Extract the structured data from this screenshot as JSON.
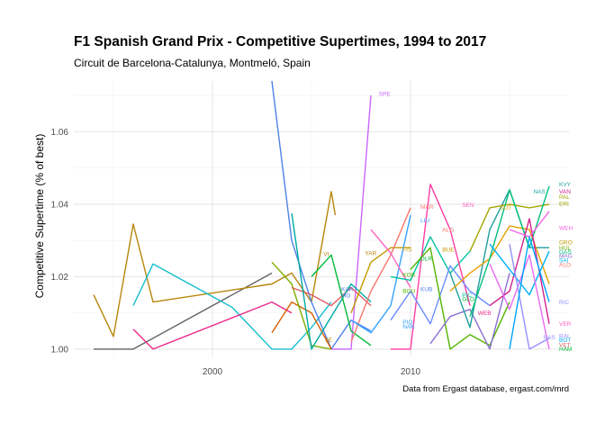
{
  "chart_data": {
    "type": "line",
    "title": "F1 Spanish Grand Prix - Competitive Supertimes, 1994 to 2017",
    "subtitle": "Circuit de Barcelona-Catalunya, Montmeló, Spain",
    "caption": "Data from Ergast database, ergast.com/mrd",
    "xlabel": "",
    "ylabel": "Competitive Supertime (% of best)",
    "x_ticks": [
      2000,
      2010
    ],
    "y_ticks": [
      1.0,
      1.02,
      1.04,
      1.06
    ],
    "y_tick_labels": [
      "1.00",
      "1.02",
      "1.04",
      "1.06"
    ],
    "xlim": [
      1993,
      2018
    ],
    "ylim": [
      0.998,
      1.074
    ],
    "grid": true,
    "legend": "none",
    "series": [
      {
        "color": "#636363",
        "points": [
          [
            1994,
            1.0
          ],
          [
            1996,
            1.0
          ],
          [
            2003,
            1.021
          ]
        ]
      },
      {
        "color": "#B8860B",
        "points": [
          [
            1994,
            1.015
          ],
          [
            1995,
            1.0035
          ],
          [
            1996,
            1.0345
          ],
          [
            1997,
            1.013
          ],
          [
            2003,
            1.018
          ],
          [
            2004,
            1.021
          ],
          [
            2005,
            1.013
          ],
          [
            2006,
            1.0435
          ],
          [
            2006.2,
            1.037
          ]
        ]
      },
      {
        "color": "#17BECF",
        "points": [
          [
            1996,
            1.012
          ],
          [
            1997,
            1.0235
          ],
          [
            2001,
            1.0115
          ],
          [
            2003,
            1.0
          ],
          [
            2004,
            1.0
          ],
          [
            2005,
            1.006
          ],
          [
            2006,
            1.013
          ]
        ]
      },
      {
        "color": "#E7298A",
        "points": [
          [
            1996,
            1.0055
          ],
          [
            1997,
            1.0
          ],
          [
            2003,
            1.013
          ],
          [
            2004,
            1.01
          ]
        ]
      },
      {
        "color": "#4F82E8",
        "points": [
          [
            2003,
            1.074
          ],
          [
            2004,
            1.03
          ],
          [
            2005,
            1.013
          ],
          [
            2006,
            1.0
          ],
          [
            2007,
            1.008
          ],
          [
            2008,
            1.005
          ]
        ]
      },
      {
        "color": "#CC66FF",
        "points": [
          [
            2006,
            1.0
          ],
          [
            2007,
            1.0
          ],
          [
            2008,
            1.07
          ]
        ]
      },
      {
        "color": "#D95F02",
        "points": [
          [
            2003,
            1.0045
          ],
          [
            2004,
            1.013
          ],
          [
            2005,
            1.01
          ],
          [
            2006,
            1.0
          ]
        ]
      },
      {
        "color": "#7CAE00",
        "points": [
          [
            2003,
            1.024
          ],
          [
            2004,
            1.018
          ],
          [
            2005,
            1.001
          ],
          [
            2006,
            1.0
          ]
        ]
      },
      {
        "color": "#E05A63",
        "points": [
          [
            2004,
            1.017
          ],
          [
            2005,
            1.015
          ],
          [
            2006,
            1.012
          ],
          [
            2007,
            1.017
          ],
          [
            2008,
            1.012
          ]
        ]
      },
      {
        "color": "#00A9A5",
        "points": [
          [
            2004,
            1.0375
          ],
          [
            2005,
            1.0
          ],
          [
            2006,
            1.009
          ],
          [
            2007,
            1.018
          ],
          [
            2008,
            1.013
          ]
        ]
      },
      {
        "color": "#00BA38",
        "points": [
          [
            2005,
            1.02
          ],
          [
            2006,
            1.026
          ],
          [
            2007,
            1.005
          ],
          [
            2008,
            1.001
          ]
        ]
      },
      {
        "color": "#C49A00",
        "points": [
          [
            2007,
            1.01
          ],
          [
            2008,
            1.024
          ],
          [
            2009,
            1.028
          ],
          [
            2010,
            1.028
          ]
        ]
      },
      {
        "color": "#F8766D",
        "points": [
          [
            2007,
            1.002
          ],
          [
            2008,
            1.016
          ],
          [
            2009,
            1.026
          ],
          [
            2010,
            1.039
          ]
        ]
      },
      {
        "color": "#35A2FF",
        "points": [
          [
            2007,
            1.008
          ],
          [
            2008,
            1.0045
          ],
          [
            2009,
            1.012
          ],
          [
            2010,
            1.037
          ]
        ]
      },
      {
        "color": "#FF61C3",
        "points": [
          [
            2008,
            1.033
          ],
          [
            2009,
            1.0265
          ],
          [
            2010,
            1.017
          ]
        ]
      },
      {
        "color": "#00C19F",
        "points": [
          [
            2009,
            1.02
          ],
          [
            2010,
            1.019
          ],
          [
            2011,
            1.031
          ],
          [
            2012,
            1.021
          ],
          [
            2013,
            1.027
          ]
        ]
      },
      {
        "color": "#FF3DA6",
        "points": [
          [
            2009,
            1.0
          ],
          [
            2010,
            1.0
          ],
          [
            2011,
            1.0455
          ],
          [
            2012,
            1.033
          ],
          [
            2013,
            1.012
          ]
        ]
      },
      {
        "color": "#6A8CFF",
        "points": [
          [
            2009,
            1.008
          ],
          [
            2010,
            1.016
          ],
          [
            2011,
            1.007
          ],
          [
            2012,
            1.023
          ],
          [
            2013,
            1.016
          ],
          [
            2014,
            1.012
          ]
        ]
      },
      {
        "color": "#53B400",
        "points": [
          [
            2010,
            1.022
          ],
          [
            2011,
            1.028
          ],
          [
            2012,
            1.0
          ],
          [
            2013,
            1.004
          ],
          [
            2014,
            1.001
          ],
          [
            2015,
            1.013
          ]
        ]
      },
      {
        "color": "#8B6FD1",
        "points": [
          [
            2011,
            1.0015
          ],
          [
            2012,
            1.009
          ],
          [
            2013,
            1.011
          ],
          [
            2014,
            1.0
          ],
          [
            2015,
            1.021
          ]
        ]
      },
      {
        "color": "#1E9E9E",
        "points": [
          [
            2012,
            1.021
          ],
          [
            2013,
            1.006
          ],
          [
            2014,
            1.033
          ],
          [
            2015,
            1.044
          ],
          [
            2016,
            1.028
          ],
          [
            2017,
            1.028
          ]
        ]
      },
      {
        "color": "#E6A000",
        "points": [
          [
            2012,
            1.016
          ],
          [
            2013,
            1.021
          ],
          [
            2014,
            1.025
          ],
          [
            2015,
            1.034
          ],
          [
            2016,
            1.033
          ],
          [
            2017,
            1.018
          ]
        ]
      },
      {
        "color": "#A3A500",
        "points": [
          [
            2013,
            1.027
          ],
          [
            2014,
            1.039
          ],
          [
            2015,
            1.04
          ],
          [
            2016,
            1.039
          ],
          [
            2017,
            1.04
          ]
        ]
      },
      {
        "color": "#00BF7D",
        "points": [
          [
            2013,
            1.009
          ],
          [
            2014,
            1.025
          ],
          [
            2015,
            1.044
          ],
          [
            2016,
            1.028
          ],
          [
            2017,
            1.045
          ]
        ]
      },
      {
        "color": "#D11F8C",
        "points": [
          [
            2014,
            1.012
          ],
          [
            2015,
            1.016
          ],
          [
            2016,
            1.036
          ],
          [
            2017,
            1.007
          ]
        ]
      },
      {
        "color": "#00B0F6",
        "points": [
          [
            2014,
            1.029
          ],
          [
            2015,
            1.022
          ],
          [
            2016,
            1.015
          ],
          [
            2017,
            1.027
          ]
        ]
      },
      {
        "color": "#E76BF3",
        "points": [
          [
            2014,
            1.0235
          ],
          [
            2015,
            1.011
          ],
          [
            2016,
            1.026
          ],
          [
            2017,
            1.0
          ]
        ]
      },
      {
        "color": "#9590FF",
        "points": [
          [
            2015,
            1.029
          ],
          [
            2016,
            1.0
          ],
          [
            2017,
            1.003
          ]
        ]
      },
      {
        "color": "#F564E3",
        "points": [
          [
            2015,
            1.033
          ],
          [
            2016,
            1.031
          ],
          [
            2017,
            1.038
          ]
        ]
      },
      {
        "color": "#00A5FF",
        "points": [
          [
            2015,
            1.0
          ],
          [
            2016,
            1.031
          ],
          [
            2017,
            1.013
          ]
        ]
      }
    ],
    "point_labels": [
      {
        "text": "SPE",
        "x": 2008.4,
        "y": 1.0705,
        "color": "#CC66FF"
      },
      {
        "text": "KVY",
        "x": 2017.5,
        "y": 1.0455,
        "color": "#1E9E9E"
      },
      {
        "text": "NAS",
        "x": 2016.2,
        "y": 1.0435,
        "color": "#1E9E9E"
      },
      {
        "text": "VAN",
        "x": 2017.5,
        "y": 1.0435,
        "color": "#D11F8C"
      },
      {
        "text": "PAL",
        "x": 2017.5,
        "y": 1.042,
        "color": "#A3A500"
      },
      {
        "text": "ERI",
        "x": 2017.5,
        "y": 1.0402,
        "color": "#A3A500"
      },
      {
        "text": "MAR",
        "x": 2010.5,
        "y": 1.0393,
        "color": "#F8766D"
      },
      {
        "text": "SEN",
        "x": 2012.6,
        "y": 1.0398,
        "color": "#FF61C3"
      },
      {
        "text": "SUT",
        "x": 2014.5,
        "y": 1.039,
        "color": "#E6A000"
      },
      {
        "text": "LIU",
        "x": 2010.5,
        "y": 1.0355,
        "color": "#35A2FF"
      },
      {
        "text": "ALG",
        "x": 2011.6,
        "y": 1.033,
        "color": "#F8766D"
      },
      {
        "text": "WEH",
        "x": 2017.5,
        "y": 1.0335,
        "color": "#F564E3"
      },
      {
        "text": "GRO",
        "x": 2017.5,
        "y": 1.0295,
        "color": "#C49A00"
      },
      {
        "text": "HUL",
        "x": 2017.5,
        "y": 1.028,
        "color": "#7CAE00"
      },
      {
        "text": "GAS",
        "x": 2017.5,
        "y": 1.0268,
        "color": "#00BF7D"
      },
      {
        "text": "MAG",
        "x": 2017.5,
        "y": 1.0257,
        "color": "#8B6FD1"
      },
      {
        "text": "SAI",
        "x": 2017.5,
        "y": 1.0245,
        "color": "#00B0F6"
      },
      {
        "text": "ALO",
        "x": 2017.5,
        "y": 1.0232,
        "color": "#F8766D"
      },
      {
        "text": "VI",
        "x": 2005.6,
        "y": 1.0263,
        "color": "#B8860B"
      },
      {
        "text": "YAR",
        "x": 2007.7,
        "y": 1.0265,
        "color": "#B8860B"
      },
      {
        "text": "FIS",
        "x": 2009.6,
        "y": 1.0275,
        "color": "#C49A00"
      },
      {
        "text": "BUE",
        "x": 2011.6,
        "y": 1.0275,
        "color": "#C49A00"
      },
      {
        "text": "DLR",
        "x": 2010.5,
        "y": 1.025,
        "color": "#00BA38"
      },
      {
        "text": "KOB",
        "x": 2009.6,
        "y": 1.0205,
        "color": "#53B400"
      },
      {
        "text": "KAR",
        "x": 2006.5,
        "y": 1.0165,
        "color": "#4F82E8"
      },
      {
        "text": "MO",
        "x": 2006.5,
        "y": 1.0148,
        "color": "#4F82E8"
      },
      {
        "text": "KUB",
        "x": 2010.5,
        "y": 1.0165,
        "color": "#4F82E8"
      },
      {
        "text": "BOU",
        "x": 2009.6,
        "y": 1.016,
        "color": "#53B400"
      },
      {
        "text": "PIC",
        "x": 2012.6,
        "y": 1.015,
        "color": "#00C19F"
      },
      {
        "text": "GLO",
        "x": 2012.6,
        "y": 1.0138,
        "color": "#00BA38"
      },
      {
        "text": "RIC",
        "x": 2017.5,
        "y": 1.013,
        "color": "#9590FF"
      },
      {
        "text": "WEB",
        "x": 2013.4,
        "y": 1.01,
        "color": "#E7298A"
      },
      {
        "text": "PIQ",
        "x": 2009.6,
        "y": 1.0075,
        "color": "#35A2FF"
      },
      {
        "text": "NAK",
        "x": 2009.6,
        "y": 1.0063,
        "color": "#35A2FF"
      },
      {
        "text": "VER",
        "x": 2017.5,
        "y": 1.007,
        "color": "#FF61C3"
      },
      {
        "text": "BOT",
        "x": 2017.5,
        "y": 1.0025,
        "color": "#00B0F6"
      },
      {
        "text": "RAI",
        "x": 2017.5,
        "y": 1.0037,
        "color": "#9590FF"
      },
      {
        "text": "VET",
        "x": 2017.5,
        "y": 1.0012,
        "color": "#E05A63"
      },
      {
        "text": "HAM",
        "x": 2017.5,
        "y": 1.0,
        "color": "#00BA38"
      },
      {
        "text": "RAS",
        "x": 2016.7,
        "y": 1.0033,
        "color": "#9590FF"
      },
      {
        "text": "JE",
        "x": 2005.7,
        "y": 1.0025,
        "color": "#B8860B"
      }
    ]
  }
}
